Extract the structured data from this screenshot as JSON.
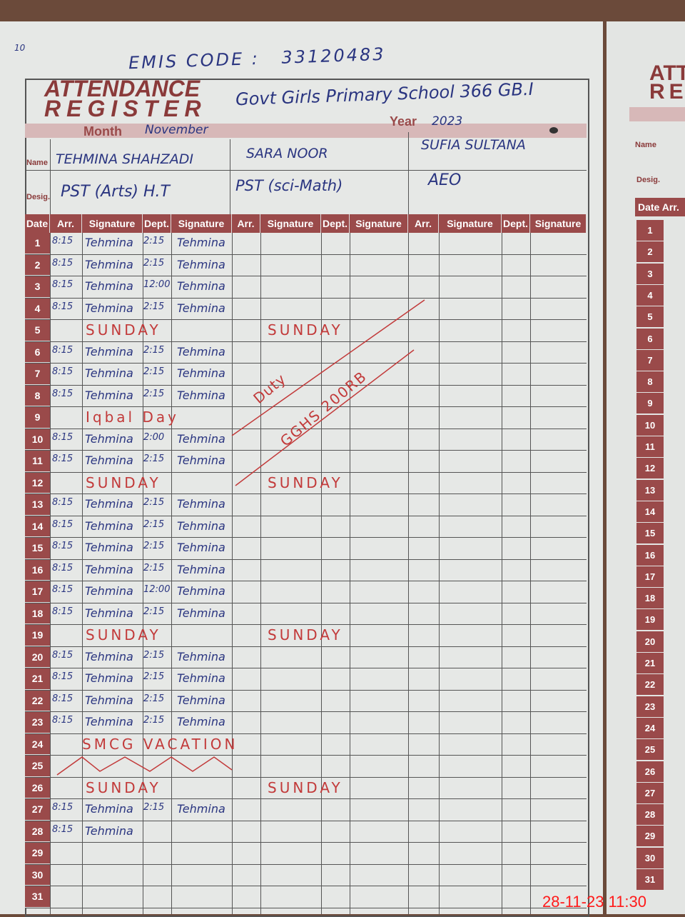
{
  "page_number": "10",
  "emis": {
    "label": "EMIS CODE :",
    "value": "33120483"
  },
  "title": {
    "line1": "ATTENDANCE",
    "line2": "REGISTER"
  },
  "school": "Govt Girls Primary School 366 GB.I",
  "month": {
    "label": "Month",
    "value": "November"
  },
  "year": {
    "label": "Year",
    "value": "2023"
  },
  "labels": {
    "name": "Name",
    "desig": "Desig.",
    "date": "Date",
    "arr": "Arr.",
    "signature": "Signature",
    "dept": "Dept."
  },
  "teachers": [
    {
      "name": "TEHMINA SHAHZADI",
      "desig": "PST (Arts) H.T"
    },
    {
      "name": "SARA NOOR",
      "desig": "PST (sci-Math)"
    },
    {
      "name": "SUFIA SULTANA",
      "desig": "AEO"
    }
  ],
  "rows": [
    {
      "d": "1",
      "a": "8:15",
      "s": "Tehmina",
      "p": "2:15",
      "s2": "Tehmina"
    },
    {
      "d": "2",
      "a": "8:15",
      "s": "Tehmina",
      "p": "2:15",
      "s2": "Tehmina"
    },
    {
      "d": "3",
      "a": "8:15",
      "s": "Tehmina",
      "p": "12:00",
      "s2": "Tehmina"
    },
    {
      "d": "4",
      "a": "8:15",
      "s": "Tehmina",
      "p": "2:15",
      "s2": "Tehmina"
    },
    {
      "d": "5",
      "note": "SUNDAY",
      "note2": "SUNDAY"
    },
    {
      "d": "6",
      "a": "8:15",
      "s": "Tehmina",
      "p": "2:15",
      "s2": "Tehmina"
    },
    {
      "d": "7",
      "a": "8:15",
      "s": "Tehmina",
      "p": "2:15",
      "s2": "Tehmina"
    },
    {
      "d": "8",
      "a": "8:15",
      "s": "Tehmina",
      "p": "2:15",
      "s2": "Tehmina"
    },
    {
      "d": "9",
      "note": "Iqbal Day"
    },
    {
      "d": "10",
      "a": "8:15",
      "s": "Tehmina",
      "p": "2:00",
      "s2": "Tehmina"
    },
    {
      "d": "11",
      "a": "8:15",
      "s": "Tehmina",
      "p": "2:15",
      "s2": "Tehmina"
    },
    {
      "d": "12",
      "note": "SUNDAY",
      "note2": "SUNDAY"
    },
    {
      "d": "13",
      "a": "8:15",
      "s": "Tehmina",
      "p": "2:15",
      "s2": "Tehmina"
    },
    {
      "d": "14",
      "a": "8:15",
      "s": "Tehmina",
      "p": "2:15",
      "s2": "Tehmina"
    },
    {
      "d": "15",
      "a": "8:15",
      "s": "Tehmina",
      "p": "2:15",
      "s2": "Tehmina"
    },
    {
      "d": "16",
      "a": "8:15",
      "s": "Tehmina",
      "p": "2:15",
      "s2": "Tehmina"
    },
    {
      "d": "17",
      "a": "8:15",
      "s": "Tehmina",
      "p": "12:00",
      "s2": "Tehmina"
    },
    {
      "d": "18",
      "a": "8:15",
      "s": "Tehmina",
      "p": "2:15",
      "s2": "Tehmina"
    },
    {
      "d": "19",
      "note": "SUNDAY",
      "note2": "SUNDAY"
    },
    {
      "d": "20",
      "a": "8:15",
      "s": "Tehmina",
      "p": "2:15",
      "s2": "Tehmina"
    },
    {
      "d": "21",
      "a": "8:15",
      "s": "Tehmina",
      "p": "2:15",
      "s2": "Tehmina"
    },
    {
      "d": "22",
      "a": "8:15",
      "s": "Tehmina",
      "p": "2:15",
      "s2": "Tehmina"
    },
    {
      "d": "23",
      "a": "8:15",
      "s": "Tehmina",
      "p": "2:15",
      "s2": "Tehmina"
    },
    {
      "d": "24",
      "note": "SMCG VACATION"
    },
    {
      "d": "25"
    },
    {
      "d": "26",
      "note": "SUNDAY",
      "note2": "SUNDAY"
    },
    {
      "d": "27",
      "a": "8:15",
      "s": "Tehmina",
      "p": "2:15",
      "s2": "Tehmina"
    },
    {
      "d": "28",
      "a": "8:15",
      "s": "Tehmina"
    },
    {
      "d": "29"
    },
    {
      "d": "30"
    },
    {
      "d": "31"
    }
  ],
  "duty_note": {
    "line1": "Duty",
    "line2": "GGHS 200RB"
  },
  "right_page": {
    "title1": "ATT",
    "title2": "RE",
    "name": "Name",
    "desig": "Desig.",
    "date": "Date",
    "arr": "Arr."
  },
  "timestamp": "28-11-23  11:30"
}
